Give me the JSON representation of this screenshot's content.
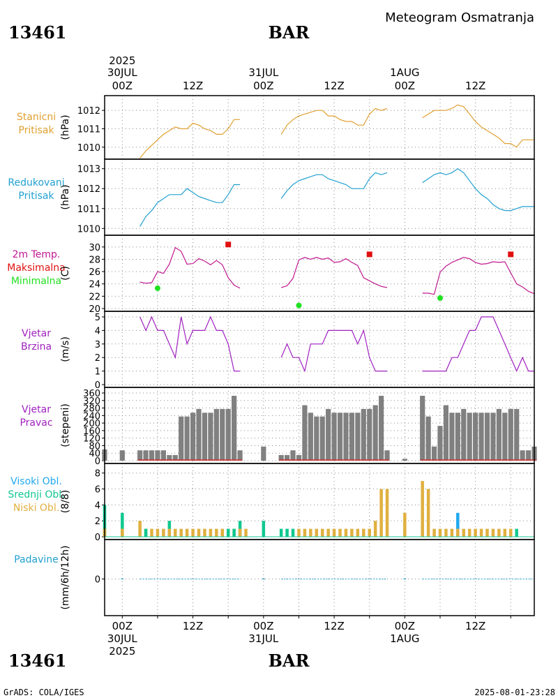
{
  "header": {
    "station_id": "13461",
    "station_name": "BAR",
    "subtitle": "Meteogram Osmatranja"
  },
  "footer": {
    "credit": "GrADS: COLA/IGES",
    "timestamp": "2025-08-01-23:28"
  },
  "time_axis": {
    "year": "2025",
    "day_labels": [
      "30JUL",
      "31JUL",
      "1AUG"
    ],
    "hour_labels": [
      "00Z",
      "12Z",
      "00Z",
      "12Z",
      "00Z",
      "12Z"
    ],
    "hour_values": [
      0,
      12,
      24,
      36,
      48,
      60
    ],
    "range_hours": [
      -3,
      70
    ]
  },
  "colors": {
    "station_pressure": "#e0a030",
    "reduced_pressure": "#20a0d0",
    "temperature": "#c01890",
    "max_temp": "#e01010",
    "min_temp": "#20e020",
    "wind_speed": "#a020c0",
    "wind_dir_bar": "#808080",
    "wind_dir_base": "#d03030",
    "cloud_high": "#20a8f0",
    "cloud_mid": "#10c890",
    "cloud_low": "#e0b040",
    "precip": "#20a0d0",
    "frame": "#000000",
    "grid": "#888888"
  },
  "chart_data": [
    {
      "type": "line",
      "id": "station_pressure",
      "label_lines": [
        "Stanicni",
        "Pritisak"
      ],
      "unit": "(hPa)",
      "ylim": [
        1009.5,
        1012.5
      ],
      "yticks": [
        1010,
        1011,
        1012
      ],
      "x": [
        3,
        4,
        5,
        6,
        7,
        8,
        9,
        10,
        11,
        12,
        13,
        14,
        15,
        16,
        17,
        18,
        19,
        20,
        27,
        28,
        29,
        30,
        31,
        32,
        33,
        34,
        35,
        36,
        37,
        38,
        39,
        40,
        41,
        42,
        43,
        44,
        45,
        51,
        52,
        53,
        54,
        55,
        56,
        57,
        58,
        59,
        60,
        61,
        62,
        63,
        64,
        65,
        66,
        67,
        68,
        69,
        70
      ],
      "values": [
        1009.4,
        1009.8,
        1010.1,
        1010.4,
        1010.7,
        1010.9,
        1011.1,
        1011.0,
        1011.0,
        1011.3,
        1011.2,
        1011.0,
        1010.9,
        1010.7,
        1010.7,
        1011.0,
        1011.5,
        1011.5,
        1010.7,
        1011.2,
        1011.5,
        1011.7,
        1011.8,
        1011.9,
        1012.0,
        1012.0,
        1011.7,
        1011.7,
        1011.5,
        1011.4,
        1011.4,
        1011.2,
        1011.2,
        1011.8,
        1012.1,
        1012.0,
        1012.1,
        1011.6,
        1011.8,
        1012.0,
        1012.0,
        1012.0,
        1012.1,
        1012.3,
        1012.2,
        1011.8,
        1011.4,
        1011.1,
        1010.9,
        1010.7,
        1010.5,
        1010.2,
        1010.2,
        1010.0,
        1010.4,
        1010.4,
        1010.4
      ]
    },
    {
      "type": "line",
      "id": "reduced_pressure",
      "label_lines": [
        "Redukovani",
        "Pritisak"
      ],
      "unit": "(hPa)",
      "ylim": [
        1009.8,
        1013.2
      ],
      "yticks": [
        1010,
        1011,
        1012,
        1013
      ],
      "x": [
        3,
        4,
        5,
        6,
        7,
        8,
        9,
        10,
        11,
        12,
        13,
        14,
        15,
        16,
        17,
        18,
        19,
        20,
        27,
        28,
        29,
        30,
        31,
        32,
        33,
        34,
        35,
        36,
        37,
        38,
        39,
        40,
        41,
        42,
        43,
        44,
        45,
        51,
        52,
        53,
        54,
        55,
        56,
        57,
        58,
        59,
        60,
        61,
        62,
        63,
        64,
        65,
        66,
        67,
        68,
        69,
        70
      ],
      "values": [
        1010.1,
        1010.6,
        1010.9,
        1011.3,
        1011.5,
        1011.7,
        1011.7,
        1011.7,
        1012.0,
        1011.8,
        1011.6,
        1011.5,
        1011.4,
        1011.3,
        1011.3,
        1011.7,
        1012.2,
        1012.2,
        1011.5,
        1011.9,
        1012.2,
        1012.4,
        1012.5,
        1012.6,
        1012.7,
        1012.7,
        1012.5,
        1012.4,
        1012.3,
        1012.2,
        1012.0,
        1012.0,
        1012.0,
        1012.5,
        1012.8,
        1012.7,
        1012.8,
        1012.3,
        1012.5,
        1012.7,
        1012.8,
        1012.7,
        1012.8,
        1013.0,
        1012.8,
        1012.4,
        1012.0,
        1011.7,
        1011.5,
        1011.2,
        1011.0,
        1010.9,
        1010.9,
        1011.0,
        1011.1,
        1011.1,
        1011.1
      ]
    },
    {
      "type": "line",
      "id": "temperature",
      "label_lines": [
        "2m Temp.",
        "Maksimalna",
        "Minimalna"
      ],
      "unit": "(C)",
      "ylim": [
        20,
        31
      ],
      "yticks": [
        20,
        22,
        24,
        26,
        28,
        30
      ],
      "x": [
        3,
        4,
        5,
        6,
        7,
        8,
        9,
        10,
        11,
        12,
        13,
        14,
        15,
        16,
        17,
        18,
        19,
        20,
        27,
        28,
        29,
        30,
        31,
        32,
        33,
        34,
        35,
        36,
        37,
        38,
        39,
        40,
        41,
        42,
        43,
        44,
        45,
        51,
        52,
        53,
        54,
        55,
        56,
        57,
        58,
        59,
        60,
        61,
        62,
        63,
        64,
        65,
        66,
        67,
        68,
        69,
        70
      ],
      "values": [
        24.3,
        24.1,
        24.2,
        26.0,
        25.7,
        27.2,
        29.9,
        29.3,
        27.2,
        27.3,
        28.1,
        27.7,
        27.1,
        27.8,
        27.1,
        25.0,
        23.8,
        23.3,
        23.4,
        23.7,
        24.9,
        27.9,
        28.3,
        28.0,
        28.3,
        28.0,
        28.2,
        27.5,
        27.6,
        28.1,
        27.5,
        27.0,
        25.0,
        24.5,
        24.0,
        23.6,
        23.4,
        22.5,
        22.5,
        22.3,
        25.9,
        26.9,
        27.5,
        27.9,
        28.3,
        28.1,
        27.5,
        27.2,
        27.3,
        27.6,
        27.5,
        27.6,
        25.8,
        24.0,
        23.5,
        22.8,
        22.4
      ],
      "max_points": [
        {
          "x": 18,
          "value": 30.4
        },
        {
          "x": 42,
          "value": 28.8
        },
        {
          "x": 66,
          "value": 28.8
        }
      ],
      "min_points": [
        {
          "x": 6,
          "value": 23.3
        },
        {
          "x": 30,
          "value": 20.5
        },
        {
          "x": 54,
          "value": 21.7
        }
      ]
    },
    {
      "type": "line",
      "id": "wind_speed",
      "label_lines": [
        "Vjetar",
        "Brzina"
      ],
      "unit": "(m/s)",
      "ylim": [
        0,
        5
      ],
      "yticks": [
        0,
        1,
        2,
        3,
        4,
        5
      ],
      "x": [
        3,
        4,
        5,
        6,
        7,
        8,
        9,
        10,
        11,
        12,
        13,
        14,
        15,
        16,
        17,
        18,
        19,
        20,
        27,
        28,
        29,
        30,
        31,
        32,
        33,
        34,
        35,
        36,
        37,
        38,
        39,
        40,
        41,
        42,
        43,
        44,
        45,
        51,
        52,
        53,
        54,
        55,
        56,
        57,
        58,
        59,
        60,
        61,
        62,
        63,
        64,
        65,
        66,
        67,
        68,
        69,
        70
      ],
      "values": [
        5,
        4,
        5,
        4,
        4,
        3,
        2,
        5,
        3,
        4,
        4,
        4,
        5,
        4,
        4,
        3,
        1,
        1,
        2,
        3,
        2,
        2,
        1,
        3,
        3,
        3,
        4,
        4,
        4,
        4,
        4,
        3,
        4,
        2,
        1,
        1,
        1,
        1,
        1,
        1,
        1,
        1,
        2,
        2,
        3,
        4,
        4,
        5,
        5,
        5,
        4,
        3,
        2,
        1,
        2,
        1,
        1
      ]
    },
    {
      "type": "bar",
      "id": "wind_direction",
      "label_lines": [
        "Vjetar",
        "Pravac"
      ],
      "unit": "(stepeni)",
      "ylim": [
        0,
        360
      ],
      "yticks": [
        0,
        40,
        80,
        120,
        160,
        200,
        240,
        280,
        320,
        360
      ],
      "x": [
        -3,
        0,
        3,
        4,
        5,
        6,
        7,
        8,
        9,
        10,
        11,
        12,
        13,
        14,
        15,
        16,
        17,
        18,
        19,
        20,
        24,
        27,
        28,
        29,
        30,
        31,
        32,
        33,
        34,
        35,
        36,
        37,
        38,
        39,
        40,
        41,
        42,
        43,
        44,
        45,
        48,
        51,
        52,
        53,
        54,
        55,
        56,
        57,
        58,
        59,
        60,
        61,
        62,
        63,
        64,
        65,
        66,
        67,
        68,
        69,
        70
      ],
      "values": [
        60,
        55,
        55,
        55,
        55,
        55,
        55,
        30,
        30,
        235,
        235,
        255,
        275,
        255,
        255,
        275,
        275,
        275,
        345,
        55,
        75,
        30,
        30,
        55,
        30,
        295,
        255,
        235,
        235,
        275,
        255,
        255,
        255,
        255,
        255,
        275,
        275,
        295,
        345,
        55,
        10,
        345,
        235,
        75,
        185,
        295,
        255,
        255,
        275,
        255,
        255,
        255,
        255,
        255,
        275,
        255,
        275,
        275,
        55,
        55,
        75
      ]
    },
    {
      "type": "bar",
      "id": "cloud_cover",
      "label_lines": [
        "Visoki Obl.",
        "Srednji Obl.",
        "Niski Obl."
      ],
      "unit": "(8/8)",
      "ylim": [
        0,
        8.5
      ],
      "yticks": [
        0,
        2,
        4,
        6,
        8
      ],
      "x": [
        -3,
        0,
        3,
        4,
        5,
        6,
        7,
        8,
        9,
        10,
        11,
        12,
        13,
        14,
        15,
        16,
        17,
        18,
        19,
        20,
        21,
        24,
        27,
        28,
        29,
        30,
        31,
        32,
        33,
        34,
        35,
        36,
        37,
        38,
        39,
        40,
        41,
        42,
        43,
        44,
        45,
        48,
        51,
        52,
        53,
        54,
        55,
        56,
        57,
        58,
        59,
        60,
        61,
        62,
        63,
        64,
        65,
        66,
        67
      ],
      "series": [
        {
          "name": "Niski Obl.",
          "values": [
            1,
            1,
            2,
            1,
            1,
            1,
            1,
            1,
            1,
            1,
            1,
            1,
            1,
            1,
            1,
            1,
            1,
            1,
            1,
            1,
            1,
            0,
            0,
            0,
            0,
            1,
            1,
            1,
            1,
            1,
            1,
            1,
            1,
            1,
            1,
            1,
            1,
            1,
            2,
            6,
            6,
            3,
            7,
            6,
            1,
            1,
            1,
            1,
            1,
            1,
            1,
            1,
            1,
            1,
            1,
            1,
            1,
            1,
            0
          ]
        },
        {
          "name": "Srednji Obl.",
          "values": [
            4,
            3,
            0,
            1,
            0,
            0,
            0,
            2,
            0,
            0,
            0,
            0,
            0,
            0,
            0,
            0,
            0,
            1,
            1,
            2,
            0,
            2,
            1,
            1,
            1,
            0,
            0,
            0,
            0,
            0,
            0,
            0,
            0,
            0,
            0,
            0,
            0,
            0,
            0,
            0,
            0,
            0,
            0,
            0,
            0,
            0,
            0,
            0,
            0,
            0,
            0,
            0,
            0,
            0,
            0,
            0,
            0,
            0,
            1
          ]
        },
        {
          "name": "Visoki Obl.",
          "values": [
            0,
            0,
            0,
            0,
            0,
            0,
            0,
            0,
            0,
            0,
            0,
            0,
            0,
            0,
            0,
            0,
            0,
            0,
            0,
            0,
            0,
            0,
            0,
            0,
            0,
            0,
            0,
            0,
            0,
            0,
            0,
            0,
            0,
            0,
            0,
            0,
            0,
            0,
            0,
            0,
            0,
            0,
            0,
            0,
            0,
            0,
            0,
            0,
            3,
            0,
            0,
            0,
            0,
            0,
            0,
            0,
            0,
            0,
            0
          ]
        }
      ]
    },
    {
      "type": "line",
      "id": "precipitation",
      "label_lines": [
        "Padavine"
      ],
      "unit": "(mm/6h/12h)",
      "ylim": [
        -1,
        1
      ],
      "yticks": [
        0
      ],
      "x": [
        0,
        24,
        48
      ],
      "values": [
        0,
        0,
        0
      ],
      "segments": [
        [
          3,
          20
        ],
        [
          27,
          45
        ],
        [
          51,
          70
        ]
      ]
    }
  ]
}
